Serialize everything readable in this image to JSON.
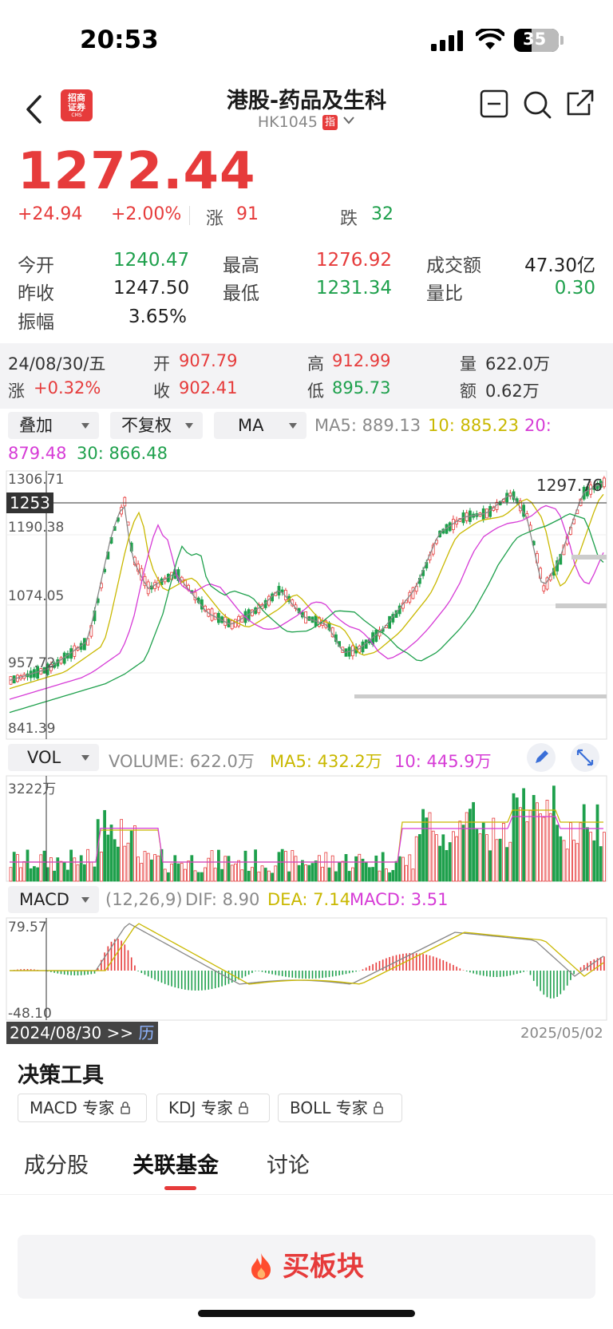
{
  "status": {
    "time": "20:53",
    "battery": "35"
  },
  "header": {
    "title": "港股-药品及生科",
    "code": "HK1045",
    "badge": "指",
    "logo_text_top": "招商",
    "logo_text_bottom": "证券",
    "logo_small": "CMS"
  },
  "quote": {
    "price": "1272.44",
    "change": "+24.94",
    "change_pct": "+2.00%",
    "up_label": "涨",
    "up_count": "91",
    "down_label": "跌",
    "down_count": "32",
    "open_label": "今开",
    "open": "1240.47",
    "high_label": "最高",
    "high": "1276.92",
    "amount_label": "成交额",
    "amount": "47.30亿",
    "prev_label": "昨收",
    "prev": "1247.50",
    "low_label": "最低",
    "low": "1231.34",
    "ratio_label": "量比",
    "ratio": "0.30",
    "amp_label": "振幅",
    "amp": "3.65%"
  },
  "kbar": {
    "date": "24/08/30/五",
    "open_label": "开",
    "open": "907.79",
    "high_label": "高",
    "high": "912.99",
    "vol_label": "量",
    "vol": "622.0万",
    "chg_label": "涨",
    "chg": "+0.32%",
    "close_label": "收",
    "close": "902.41",
    "low_label": "低",
    "low": "895.73",
    "amt_label": "额",
    "amt": "0.62万"
  },
  "selectors": {
    "overlay": "叠加",
    "adjust": "不复权",
    "indicator": "MA",
    "vol": "VOL",
    "macd": "MACD"
  },
  "ma": {
    "ma5": "MA5: 889.13",
    "ma10": "10: 885.23",
    "ma20": "20:",
    "ma20v": "879.48",
    "ma30": "30: 866.48"
  },
  "price_axis": {
    "top": "1306.71",
    "cross": "1253",
    "l2": "1190.38",
    "l3": "1074.05",
    "l4": "957.72",
    "bottom": "841.39",
    "max_label": "1297.76"
  },
  "vol": {
    "volume": "VOLUME: 622.0万",
    "ma5": "MA5: 432.2万",
    "ma10": "10: 445.9万",
    "axis_top": "3222万"
  },
  "macd": {
    "params": "(12,26,9)",
    "dif": "DIF: 8.90",
    "dea": "DEA: 7.14",
    "macd": "MACD: 3.51",
    "axis_top": "79.57",
    "axis_bottom": "-48.10"
  },
  "dates": {
    "start": "2024/08/30 >>",
    "hist": "历",
    "end": "2025/05/02"
  },
  "tools": {
    "title": "决策工具",
    "items": [
      "MACD 专家",
      "KDJ 专家",
      "BOLL 专家"
    ]
  },
  "tabs": [
    "成分股",
    "关联基金",
    "讨论"
  ],
  "buy": {
    "label": "买板块"
  },
  "colors": {
    "up": "#e63b3b",
    "down": "#1ea04c",
    "ma5": "#888888",
    "ma10": "#c9b800",
    "ma20": "#d63bd6",
    "ma30": "#1ea04c"
  }
}
